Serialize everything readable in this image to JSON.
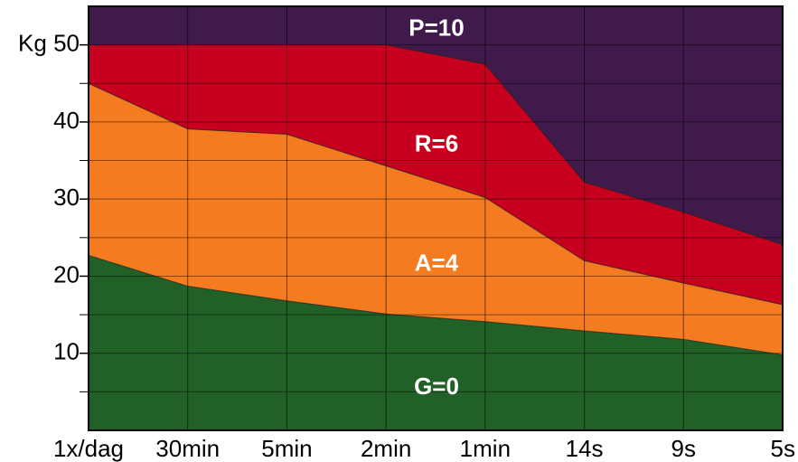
{
  "chart_data": {
    "type": "area",
    "title": "",
    "xlabel": "",
    "ylabel": "Kg",
    "categories": [
      "1x/dag",
      "30min",
      "5min",
      "2min",
      "1min",
      "14s",
      "9s",
      "5s"
    ],
    "ylim": [
      0,
      55
    ],
    "yticks": [
      10,
      20,
      30,
      40,
      50
    ],
    "ytick_labels": [
      "10",
      "20",
      "30",
      "40",
      "Kg 50"
    ],
    "grid": true,
    "boundaries": [
      {
        "name": "G/A",
        "values": [
          22.7,
          18.7,
          16.8,
          15.1,
          14.1,
          12.9,
          11.8,
          9.8
        ]
      },
      {
        "name": "A/R",
        "values": [
          45.0,
          39.1,
          38.4,
          34.3,
          30.2,
          22.0,
          19.1,
          16.3
        ]
      },
      {
        "name": "R/P",
        "values": [
          50.0,
          50.0,
          50.0,
          50.0,
          47.5,
          32.2,
          28.3,
          24.1
        ]
      }
    ],
    "zones": [
      {
        "label": "G=0",
        "color": "#216127",
        "label_y": 5.5
      },
      {
        "label": "A=4",
        "color": "#f47b20",
        "label_y": 21.5
      },
      {
        "label": "R=6",
        "color": "#c8001f",
        "label_y": 37
      },
      {
        "label": "P=10",
        "color": "#3f1a4b",
        "label_y": 52
      }
    ]
  }
}
